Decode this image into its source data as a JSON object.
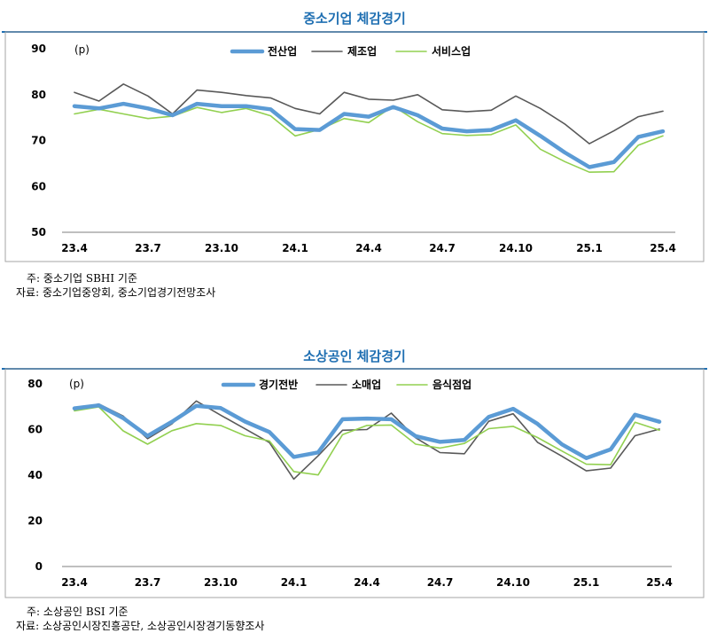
{
  "chart_data": [
    {
      "type": "line",
      "title": "중소기업 체감경기",
      "unit_label": "(p)",
      "ylim": [
        50,
        90
      ],
      "yticks": [
        50,
        60,
        70,
        80,
        90
      ],
      "xtick_labels": [
        "23.4",
        "23.7",
        "23.10",
        "24.1",
        "24.4",
        "24.7",
        "24.10",
        "25.1",
        "25.4"
      ],
      "x": [
        "23.4",
        "23.5",
        "23.6",
        "23.7",
        "23.8",
        "23.9",
        "23.10",
        "23.11",
        "23.12",
        "24.1",
        "24.2",
        "24.3",
        "24.4",
        "24.5",
        "24.6",
        "24.7",
        "24.8",
        "24.9",
        "24.10",
        "24.11",
        "24.12",
        "25.1",
        "25.2",
        "25.3",
        "25.4"
      ],
      "series": [
        {
          "name": "전산업",
          "color": "#5b9bd5",
          "width": 4.5,
          "values": [
            77.5,
            77.0,
            78.0,
            77.0,
            75.5,
            78.0,
            77.5,
            77.5,
            76.8,
            72.5,
            72.3,
            75.8,
            75.2,
            77.3,
            75.5,
            72.6,
            72.0,
            72.3,
            74.4,
            71.0,
            67.4,
            64.2,
            65.3,
            70.8,
            72.0
          ]
        },
        {
          "name": "제조업",
          "color": "#595959",
          "width": 1.6,
          "values": [
            80.5,
            78.6,
            82.3,
            79.7,
            75.8,
            81.0,
            80.5,
            79.8,
            79.3,
            77.0,
            75.8,
            80.5,
            79.0,
            78.8,
            80.0,
            76.7,
            76.3,
            76.6,
            79.7,
            77.0,
            73.6,
            69.3,
            72.1,
            75.2,
            76.4
          ]
        },
        {
          "name": "서비스업",
          "color": "#92d050",
          "width": 1.6,
          "values": [
            75.8,
            76.8,
            75.8,
            74.8,
            75.3,
            77.2,
            76.1,
            77.0,
            75.4,
            71.0,
            72.4,
            74.8,
            73.9,
            77.5,
            74.1,
            71.5,
            71.1,
            71.3,
            73.4,
            68.1,
            65.4,
            63.1,
            63.2,
            69.0,
            71.0
          ]
        }
      ],
      "notes": [
        "주: 중소기업 SBHI 기준",
        "자료: 중소기업중앙회, 중소기업경기전망조사"
      ]
    },
    {
      "type": "line",
      "title": "소상공인 체감경기",
      "unit_label": "(p)",
      "ylim": [
        0,
        80
      ],
      "yticks": [
        0,
        20,
        40,
        60,
        80
      ],
      "xtick_labels": [
        "23.4",
        "23.7",
        "23.10",
        "24.1",
        "24.4",
        "24.7",
        "24.10",
        "25.1",
        "25.4"
      ],
      "x": [
        "23.4",
        "23.5",
        "23.6",
        "23.7",
        "23.8",
        "23.9",
        "23.10",
        "23.11",
        "23.12",
        "24.1",
        "24.2",
        "24.3",
        "24.4",
        "24.5",
        "24.6",
        "24.7",
        "24.8",
        "24.9",
        "24.10",
        "24.11",
        "24.12",
        "25.1",
        "25.2",
        "25.3",
        "25.4"
      ],
      "series": [
        {
          "name": "경기전반",
          "color": "#5b9bd5",
          "width": 4.5,
          "values": [
            69.3,
            70.6,
            65.0,
            57.2,
            63.4,
            70.4,
            69.4,
            63.5,
            58.9,
            48.0,
            50.0,
            64.5,
            64.8,
            64.5,
            57.1,
            54.6,
            55.4,
            65.5,
            69.1,
            62.5,
            53.5,
            47.5,
            51.3,
            66.5,
            63.4
          ]
        },
        {
          "name": "소매업",
          "color": "#595959",
          "width": 1.6,
          "values": [
            68.5,
            71.2,
            65.9,
            56.0,
            62.5,
            72.5,
            66.3,
            60.3,
            54.3,
            38.3,
            48.5,
            59.7,
            60.0,
            67.2,
            56.4,
            49.9,
            49.4,
            63.6,
            66.9,
            54.4,
            48.3,
            41.9,
            43.1,
            57.3,
            60.2
          ]
        },
        {
          "name": "음식점업",
          "color": "#92d050",
          "width": 1.6,
          "values": [
            68.2,
            69.9,
            59.4,
            53.6,
            59.5,
            62.6,
            61.8,
            57.3,
            55.0,
            41.6,
            40.1,
            57.8,
            61.8,
            62.0,
            53.6,
            51.9,
            53.9,
            60.4,
            61.4,
            56.5,
            50.6,
            44.8,
            44.6,
            63.2,
            59.7
          ]
        }
      ],
      "notes": [
        "주: 소상공인 BSI 기준",
        "자료: 소상공인시장진흥공단, 소상공인시장경기동향조사"
      ]
    }
  ]
}
